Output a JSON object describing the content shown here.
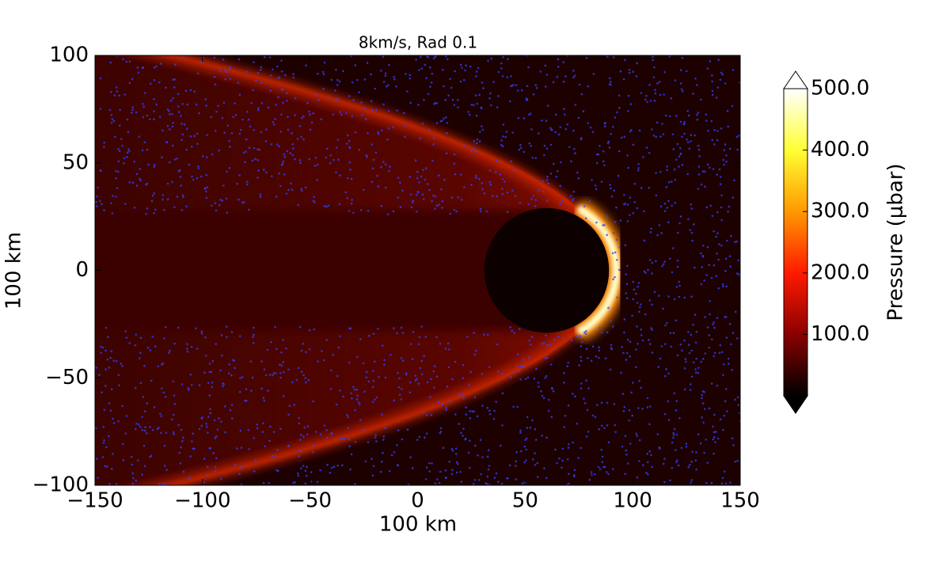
{
  "chart_data": {
    "type": "heatmap",
    "title": "8km/s, Rad 0.1",
    "x_label": "100 km",
    "y_label": "100 km",
    "xlim": [
      -150,
      150
    ],
    "xticks": [
      {
        "value": -150,
        "label": "−150"
      },
      {
        "value": -100,
        "label": "−100"
      },
      {
        "value": -50,
        "label": "−50"
      },
      0,
      50,
      100,
      150
    ],
    "ylim": [
      -100,
      100
    ],
    "yticks": [
      {
        "value": -100,
        "label": "−100"
      },
      {
        "value": -50,
        "label": "−50"
      },
      0,
      50,
      100
    ],
    "colorbar": {
      "label": "Pressure (μbar)",
      "lim": [
        0,
        500
      ],
      "ticks": [
        {
          "value": 100,
          "label": "100.0"
        },
        {
          "value": 200,
          "label": "200.0"
        },
        {
          "value": 300,
          "label": "300.0"
        },
        {
          "value": 400,
          "label": "400.0"
        },
        {
          "value": 500,
          "label": "500.0"
        }
      ],
      "colors": [
        "#000000",
        "#8a0000",
        "#ff1a00",
        "#ff9900",
        "#ffff33",
        "#ffffff"
      ]
    }
  }
}
